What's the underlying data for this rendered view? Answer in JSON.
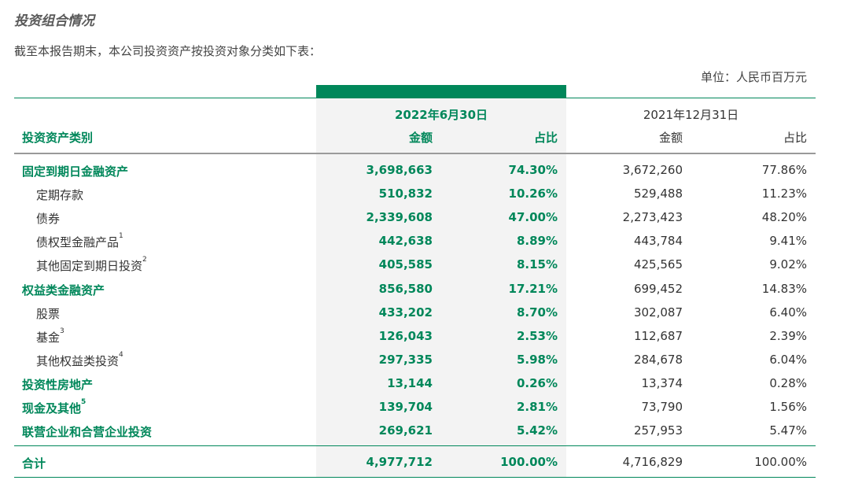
{
  "title": "投资组合情况",
  "intro": "截至本报告期末，本公司投资资产按投资对象分类如下表：",
  "unit": "单位：人民币百万元",
  "columns": {
    "type_header": "投资资产类别",
    "period1": "2022年6月30日",
    "period2": "2021年12月31日",
    "amount": "金额",
    "ratio": "占比"
  },
  "colors": {
    "accent": "#00875a",
    "highlight_bg": "#f3f3f3"
  },
  "rows": [
    {
      "label": "固定到期日金融资产",
      "note": "",
      "level": "main",
      "amt_2022": "3,698,663",
      "pct_2022": "74.30%",
      "amt_2021": "3,672,260",
      "pct_2021": "77.86%"
    },
    {
      "label": "定期存款",
      "note": "",
      "level": "sub",
      "amt_2022": "510,832",
      "pct_2022": "10.26%",
      "amt_2021": "529,488",
      "pct_2021": "11.23%"
    },
    {
      "label": "债券",
      "note": "",
      "level": "sub",
      "amt_2022": "2,339,608",
      "pct_2022": "47.00%",
      "amt_2021": "2,273,423",
      "pct_2021": "48.20%"
    },
    {
      "label": "债权型金融产品",
      "note": "1",
      "level": "sub",
      "amt_2022": "442,638",
      "pct_2022": "8.89%",
      "amt_2021": "443,784",
      "pct_2021": "9.41%"
    },
    {
      "label": "其他固定到期日投资",
      "note": "2",
      "level": "sub",
      "amt_2022": "405,585",
      "pct_2022": "8.15%",
      "amt_2021": "425,565",
      "pct_2021": "9.02%"
    },
    {
      "label": "权益类金融资产",
      "note": "",
      "level": "main",
      "amt_2022": "856,580",
      "pct_2022": "17.21%",
      "amt_2021": "699,452",
      "pct_2021": "14.83%"
    },
    {
      "label": "股票",
      "note": "",
      "level": "sub",
      "amt_2022": "433,202",
      "pct_2022": "8.70%",
      "amt_2021": "302,087",
      "pct_2021": "6.40%"
    },
    {
      "label": "基金",
      "note": "3",
      "level": "sub",
      "amt_2022": "126,043",
      "pct_2022": "2.53%",
      "amt_2021": "112,687",
      "pct_2021": "2.39%"
    },
    {
      "label": "其他权益类投资",
      "note": "4",
      "level": "sub",
      "amt_2022": "297,335",
      "pct_2022": "5.98%",
      "amt_2021": "284,678",
      "pct_2021": "6.04%"
    },
    {
      "label": "投资性房地产",
      "note": "",
      "level": "main",
      "amt_2022": "13,144",
      "pct_2022": "0.26%",
      "amt_2021": "13,374",
      "pct_2021": "0.28%"
    },
    {
      "label": "现金及其他",
      "note": "5",
      "level": "main",
      "amt_2022": "139,704",
      "pct_2022": "2.81%",
      "amt_2021": "73,790",
      "pct_2021": "1.56%"
    },
    {
      "label": "联营企业和合营企业投资",
      "note": "",
      "level": "main",
      "amt_2022": "269,621",
      "pct_2022": "5.42%",
      "amt_2021": "257,953",
      "pct_2021": "5.47%"
    }
  ],
  "total": {
    "label": "合计",
    "amt_2022": "4,977,712",
    "pct_2022": "100.00%",
    "amt_2021": "4,716,829",
    "pct_2021": "100.00%"
  }
}
